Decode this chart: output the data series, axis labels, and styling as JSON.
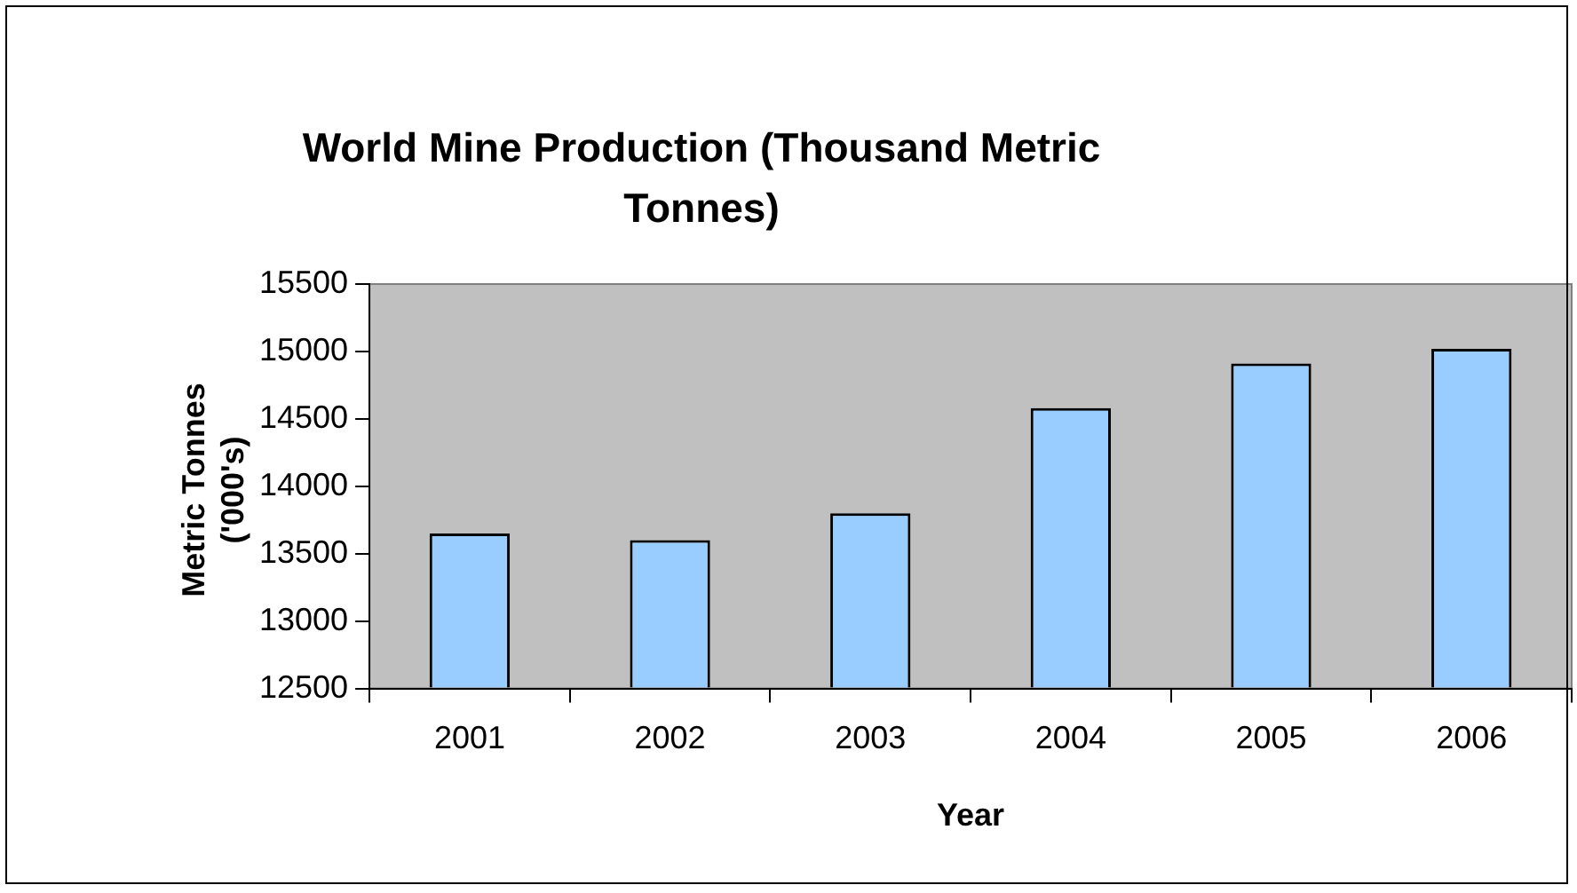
{
  "chart_data": {
    "type": "bar",
    "title": "World Mine Production (Thousand Metric Tonnes)",
    "xlabel": "Year",
    "ylabel": "Metric Tonnes ('000's)",
    "categories": [
      "2001",
      "2002",
      "2003",
      "2004",
      "2005",
      "2006"
    ],
    "values": [
      13650,
      13600,
      13800,
      14580,
      14910,
      15020
    ],
    "color": "#99ccff",
    "ylim": [
      12500,
      15500
    ],
    "yticks": [
      12500,
      13000,
      13500,
      14000,
      14500,
      15000,
      15500
    ],
    "grid": false
  }
}
